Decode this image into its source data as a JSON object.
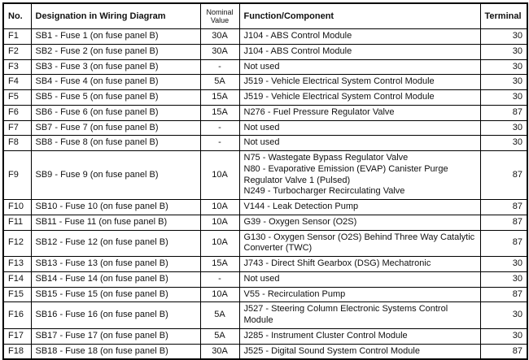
{
  "table": {
    "headers": {
      "no": "No.",
      "designation": "Designation in Wiring Diagram",
      "nominal_value": "Nominal Value",
      "function": "Function/Component",
      "terminal": "Terminal"
    },
    "rows": [
      {
        "no": "F1",
        "designation": "SB1 - Fuse 1 (on fuse panel B)",
        "value": "30A",
        "function": [
          "J104 - ABS Control Module"
        ],
        "terminal": "30"
      },
      {
        "no": "F2",
        "designation": "SB2 - Fuse 2 (on fuse panel B)",
        "value": "30A",
        "function": [
          "J104 - ABS Control Module"
        ],
        "terminal": "30"
      },
      {
        "no": "F3",
        "designation": "SB3 - Fuse 3 (on fuse panel B)",
        "value": "-",
        "function": [
          "Not used"
        ],
        "terminal": "30"
      },
      {
        "no": "F4",
        "designation": "SB4 - Fuse 4 (on fuse panel B)",
        "value": "5A",
        "function": [
          "J519 - Vehicle Electrical System Control Module"
        ],
        "terminal": "30"
      },
      {
        "no": "F5",
        "designation": "SB5 - Fuse 5 (on fuse panel B)",
        "value": "15A",
        "function": [
          "J519 - Vehicle Electrical System Control Module"
        ],
        "terminal": "30"
      },
      {
        "no": "F6",
        "designation": "SB6 - Fuse 6 (on fuse panel B)",
        "value": "15A",
        "function": [
          "N276 - Fuel Pressure Regulator Valve"
        ],
        "terminal": "87"
      },
      {
        "no": "F7",
        "designation": "SB7 - Fuse 7 (on fuse panel B)",
        "value": "-",
        "function": [
          "Not used"
        ],
        "terminal": "30"
      },
      {
        "no": "F8",
        "designation": "SB8 - Fuse 8 (on fuse panel B)",
        "value": "-",
        "function": [
          "Not used"
        ],
        "terminal": "30"
      },
      {
        "no": "F9",
        "designation": "SB9 - Fuse 9 (on fuse panel B)",
        "value": "10A",
        "function": [
          "N75 - Wastegate Bypass Regulator Valve",
          "N80 - Evaporative Emission (EVAP) Canister Purge Regulator Valve 1 (Pulsed)",
          "N249 - Turbocharger Recirculating Valve"
        ],
        "terminal": "87"
      },
      {
        "no": "F10",
        "designation": "SB10 - Fuse 10 (on fuse panel B)",
        "value": "10A",
        "function": [
          "V144 - Leak Detection Pump"
        ],
        "terminal": "87"
      },
      {
        "no": "F11",
        "designation": "SB11 - Fuse 11 (on fuse panel B)",
        "value": "10A",
        "function": [
          "G39 - Oxygen Sensor (O2S)"
        ],
        "terminal": "87"
      },
      {
        "no": "F12",
        "designation": "SB12 - Fuse 12 (on fuse panel B)",
        "value": "10A",
        "function": [
          "G130 - Oxygen Sensor (O2S) Behind Three Way Catalytic Converter (TWC)"
        ],
        "terminal": "87"
      },
      {
        "no": "F13",
        "designation": "SB13 - Fuse 13 (on fuse panel B)",
        "value": "15A",
        "function": [
          "J743 - Direct Shift Gearbox (DSG) Mechatronic"
        ],
        "terminal": "30"
      },
      {
        "no": "F14",
        "designation": "SB14 - Fuse 14 (on fuse panel B)",
        "value": "-",
        "function": [
          "Not used"
        ],
        "terminal": "30"
      },
      {
        "no": "F15",
        "designation": "SB15 - Fuse 15 (on fuse panel B)",
        "value": "10A",
        "function": [
          "V55 - Recirculation Pump"
        ],
        "terminal": "87"
      },
      {
        "no": "F16",
        "designation": "SB16 - Fuse 16 (on fuse panel B)",
        "value": "5A",
        "function": [
          "J527 - Steering Column Electronic Systems Control Module"
        ],
        "terminal": "30"
      },
      {
        "no": "F17",
        "designation": "SB17 - Fuse 17 (on fuse panel B)",
        "value": "5A",
        "function": [
          "J285 - Instrument Cluster Control Module"
        ],
        "terminal": "30"
      },
      {
        "no": "F18",
        "designation": "SB18 - Fuse 18 (on fuse panel B)",
        "value": "30A",
        "function": [
          "J525 - Digital Sound System Control Module"
        ],
        "terminal": "87"
      }
    ]
  }
}
